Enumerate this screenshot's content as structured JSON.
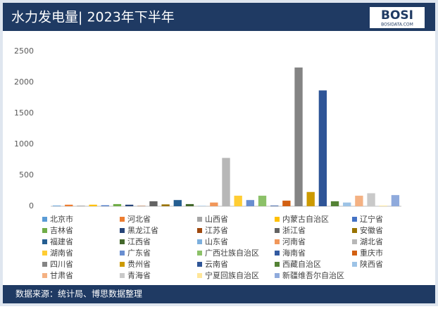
{
  "header": {
    "title": "水力发电量| 2023年下半年",
    "logo": "BOSI",
    "logo_sub": "BOSIDATA.COM"
  },
  "chart_data": {
    "type": "bar",
    "categories": [
      "北京市",
      "河北省",
      "山西省",
      "内蒙古自治区",
      "辽宁省",
      "吉林省",
      "黑龙江省",
      "江苏省",
      "浙江省",
      "安徽省",
      "福建省",
      "江西省",
      "山东省",
      "河南省",
      "湖北省",
      "湖南省",
      "广东省",
      "广西壮族自治区",
      "海南省",
      "重庆市",
      "四川省",
      "贵州省",
      "云南省",
      "西藏自治区",
      "陕西省",
      "甘肃省",
      "青海省",
      "宁夏回族自治区",
      "新疆维吾尔自治区"
    ],
    "values": [
      10,
      25,
      10,
      25,
      15,
      35,
      25,
      5,
      80,
      30,
      100,
      35,
      5,
      60,
      780,
      170,
      100,
      170,
      10,
      90,
      2240,
      230,
      1870,
      80,
      60,
      170,
      210,
      10,
      180
    ],
    "colors": [
      "#5b9bd5",
      "#ed7d31",
      "#a5a5a5",
      "#ffc000",
      "#4472c4",
      "#70ad47",
      "#264478",
      "#9e480e",
      "#636363",
      "#997300",
      "#255e91",
      "#43682b",
      "#7cafdd",
      "#f1975a",
      "#b7b7b7",
      "#ffcd33",
      "#698ed0",
      "#8cc168",
      "#335aa1",
      "#d26012",
      "#848484",
      "#cc9a00",
      "#2f5597",
      "#548235",
      "#9dc3e6",
      "#f4b183",
      "#c9c9c9",
      "#ffe699",
      "#8faadc"
    ],
    "ylim": [
      0,
      2500
    ],
    "yticks": [
      0,
      500,
      1000,
      1500,
      2000,
      2500
    ],
    "grid": false
  },
  "footer": {
    "source": "数据来源：统计局、博思数据整理"
  }
}
